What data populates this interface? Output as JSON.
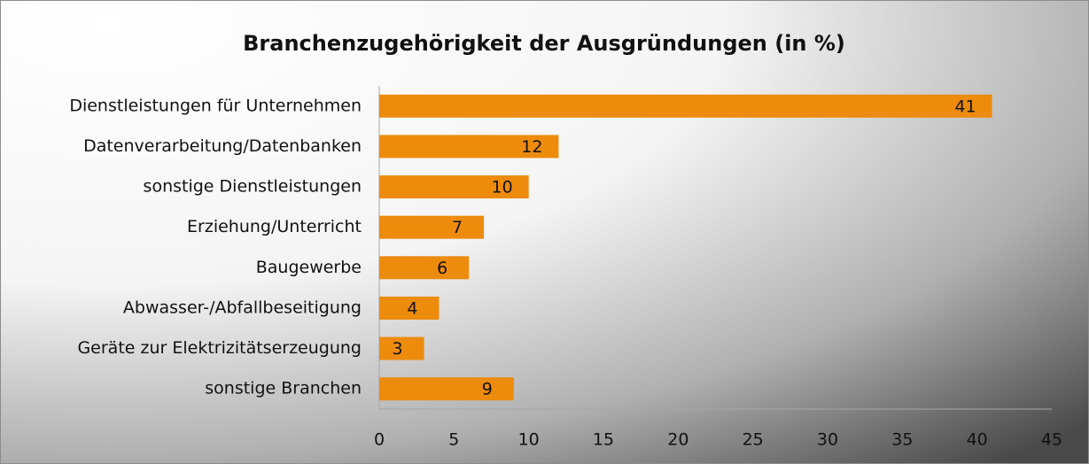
{
  "chart_data": {
    "type": "bar",
    "orientation": "horizontal",
    "title": "Branchenzugehörigkeit der Ausgründungen (in %)",
    "categories": [
      "Dienstleistungen für Unternehmen",
      "Datenverarbeitung/Datenbanken",
      "sonstige Dienstleistungen",
      "Erziehung/Unterricht",
      "Baugewerbe",
      "Abwasser-/Abfallbeseitigung",
      "Geräte zur Elektrizitätserzeugung",
      "sonstige Branchen"
    ],
    "values": [
      41,
      12,
      10,
      7,
      6,
      4,
      3,
      9
    ],
    "color": "#ec8b0c",
    "xlim": [
      0,
      45
    ],
    "xticks": [
      0,
      5,
      10,
      15,
      20,
      25,
      30,
      35,
      40,
      45
    ],
    "grid": false
  }
}
